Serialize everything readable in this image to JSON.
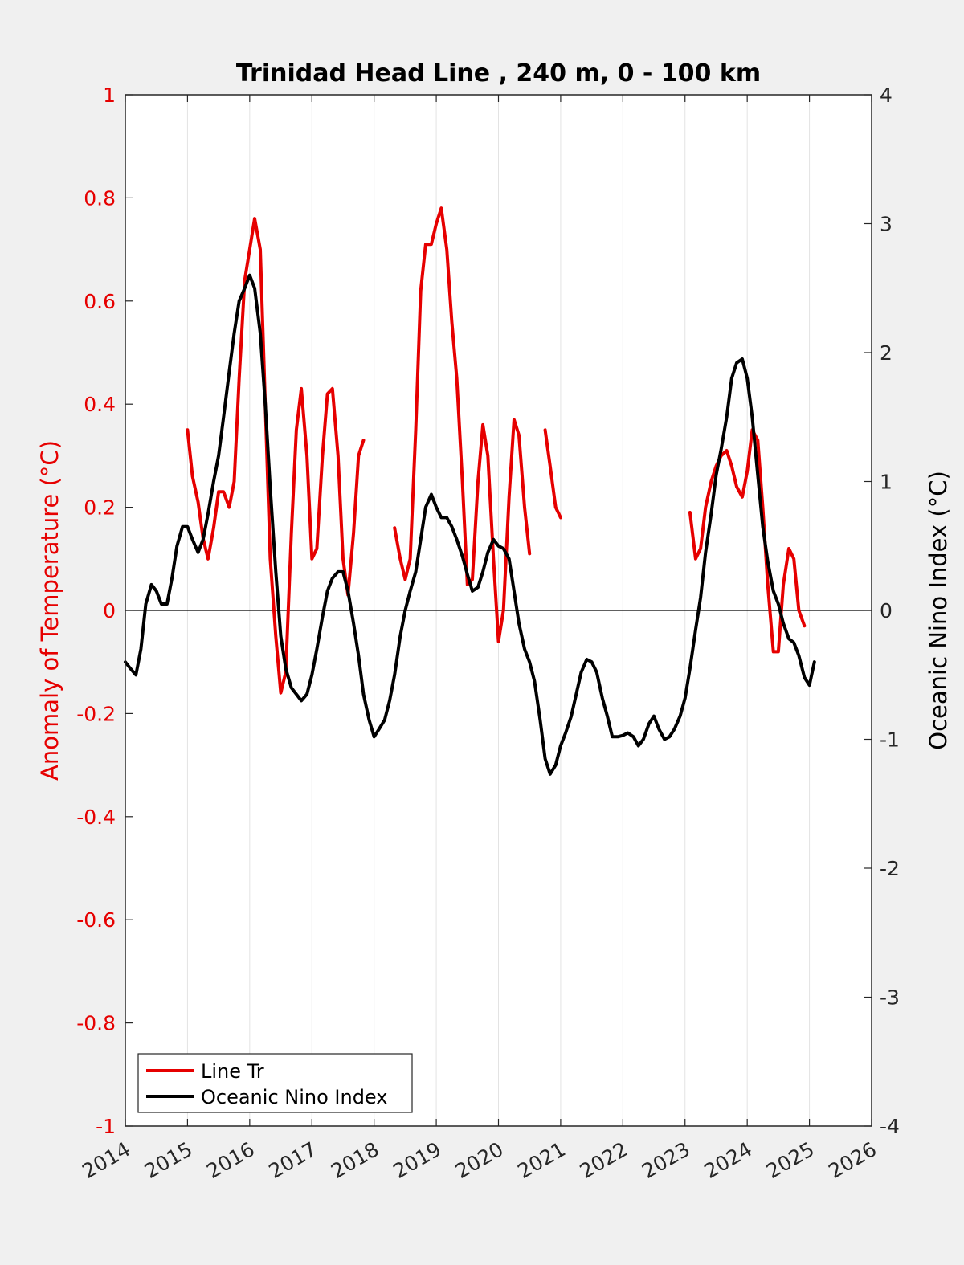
{
  "chart_data": {
    "type": "line",
    "title": "Trinidad Head Line , 240 m, 0 - 100 km",
    "xlabel": "",
    "ylabel_left": "Anomaly of Temperature (°C)",
    "ylabel_right": "Oceanic Nino Index (°C)",
    "xlim": [
      2014,
      2026
    ],
    "ylim_left": [
      -1,
      1
    ],
    "ylim_right": [
      -4,
      4
    ],
    "x_ticks": [
      "2014",
      "2015",
      "2016",
      "2017",
      "2018",
      "2019",
      "2020",
      "2021",
      "2022",
      "2023",
      "2024",
      "2025",
      "2026"
    ],
    "y_ticks_left": [
      "1",
      "0.8",
      "0.6",
      "0.4",
      "0.2",
      "0",
      "-0.2",
      "-0.4",
      "-0.6",
      "-0.8",
      "-1"
    ],
    "y_ticks_right": [
      "4",
      "3",
      "2",
      "1",
      "0",
      "-1",
      "-2",
      "-3",
      "-4"
    ],
    "grid": "vertical",
    "zero_line": true,
    "legend": "bottom-left",
    "colors": {
      "line_tr": "#e60000",
      "oni": "#000000"
    },
    "series": [
      {
        "name": "Line Tr",
        "axis": "left",
        "segments": [
          [
            [
              2015.0,
              0.35
            ],
            [
              2015.08,
              0.26
            ],
            [
              2015.17,
              0.21
            ],
            [
              2015.25,
              0.14
            ],
            [
              2015.33,
              0.1
            ],
            [
              2015.42,
              0.16
            ],
            [
              2015.5,
              0.23
            ],
            [
              2015.58,
              0.23
            ],
            [
              2015.67,
              0.2
            ],
            [
              2015.75,
              0.25
            ],
            [
              2015.83,
              0.45
            ],
            [
              2015.92,
              0.64
            ],
            [
              2016.0,
              0.7
            ],
            [
              2016.08,
              0.76
            ],
            [
              2016.17,
              0.7
            ],
            [
              2016.25,
              0.4
            ],
            [
              2016.33,
              0.1
            ],
            [
              2016.42,
              -0.05
            ],
            [
              2016.5,
              -0.16
            ],
            [
              2016.58,
              -0.12
            ],
            [
              2016.67,
              0.15
            ],
            [
              2016.75,
              0.35
            ],
            [
              2016.83,
              0.43
            ],
            [
              2016.92,
              0.3
            ],
            [
              2017.0,
              0.1
            ],
            [
              2017.08,
              0.12
            ],
            [
              2017.17,
              0.3
            ],
            [
              2017.25,
              0.42
            ],
            [
              2017.33,
              0.43
            ],
            [
              2017.42,
              0.3
            ],
            [
              2017.5,
              0.1
            ],
            [
              2017.58,
              0.03
            ],
            [
              2017.67,
              0.15
            ],
            [
              2017.75,
              0.3
            ],
            [
              2017.83,
              0.33
            ]
          ],
          [
            [
              2018.33,
              0.16
            ],
            [
              2018.42,
              0.1
            ],
            [
              2018.5,
              0.06
            ],
            [
              2018.58,
              0.1
            ],
            [
              2018.67,
              0.35
            ],
            [
              2018.75,
              0.62
            ],
            [
              2018.83,
              0.71
            ],
            [
              2018.92,
              0.71
            ],
            [
              2019.0,
              0.75
            ],
            [
              2019.08,
              0.78
            ],
            [
              2019.17,
              0.7
            ],
            [
              2019.25,
              0.56
            ],
            [
              2019.33,
              0.45
            ],
            [
              2019.42,
              0.25
            ],
            [
              2019.5,
              0.05
            ],
            [
              2019.58,
              0.06
            ],
            [
              2019.67,
              0.25
            ],
            [
              2019.75,
              0.36
            ],
            [
              2019.83,
              0.3
            ],
            [
              2019.92,
              0.1
            ],
            [
              2020.0,
              -0.06
            ],
            [
              2020.08,
              0.0
            ],
            [
              2020.17,
              0.22
            ],
            [
              2020.25,
              0.37
            ],
            [
              2020.33,
              0.34
            ],
            [
              2020.42,
              0.2
            ],
            [
              2020.5,
              0.11
            ]
          ],
          [
            [
              2020.75,
              0.35
            ],
            [
              2020.83,
              0.28
            ],
            [
              2020.92,
              0.2
            ],
            [
              2021.0,
              0.18
            ]
          ],
          [
            [
              2023.08,
              0.19
            ],
            [
              2023.17,
              0.1
            ],
            [
              2023.25,
              0.12
            ],
            [
              2023.33,
              0.2
            ],
            [
              2023.42,
              0.25
            ],
            [
              2023.5,
              0.28
            ],
            [
              2023.58,
              0.3
            ],
            [
              2023.67,
              0.31
            ],
            [
              2023.75,
              0.28
            ],
            [
              2023.83,
              0.24
            ],
            [
              2023.92,
              0.22
            ],
            [
              2024.0,
              0.27
            ],
            [
              2024.08,
              0.35
            ],
            [
              2024.17,
              0.33
            ],
            [
              2024.25,
              0.2
            ],
            [
              2024.33,
              0.05
            ],
            [
              2024.42,
              -0.08
            ],
            [
              2024.5,
              -0.08
            ],
            [
              2024.58,
              0.05
            ],
            [
              2024.67,
              0.12
            ],
            [
              2024.75,
              0.1
            ],
            [
              2024.83,
              0.0
            ],
            [
              2024.92,
              -0.03
            ]
          ]
        ]
      },
      {
        "name": "Oceanic Nino Index",
        "axis": "right",
        "segments": [
          [
            [
              2014.0,
              -0.4
            ],
            [
              2014.08,
              -0.45
            ],
            [
              2014.17,
              -0.5
            ],
            [
              2014.25,
              -0.3
            ],
            [
              2014.33,
              0.05
            ],
            [
              2014.42,
              0.2
            ],
            [
              2014.5,
              0.15
            ],
            [
              2014.58,
              0.05
            ],
            [
              2014.67,
              0.05
            ],
            [
              2014.75,
              0.25
            ],
            [
              2014.83,
              0.5
            ],
            [
              2014.92,
              0.65
            ],
            [
              2015.0,
              0.65
            ],
            [
              2015.08,
              0.55
            ],
            [
              2015.17,
              0.45
            ],
            [
              2015.25,
              0.55
            ],
            [
              2015.33,
              0.75
            ],
            [
              2015.42,
              1.0
            ],
            [
              2015.5,
              1.2
            ],
            [
              2015.58,
              1.5
            ],
            [
              2015.67,
              1.85
            ],
            [
              2015.75,
              2.15
            ],
            [
              2015.83,
              2.4
            ],
            [
              2015.92,
              2.5
            ],
            [
              2016.0,
              2.6
            ],
            [
              2016.08,
              2.5
            ],
            [
              2016.17,
              2.15
            ],
            [
              2016.25,
              1.6
            ],
            [
              2016.33,
              0.95
            ],
            [
              2016.42,
              0.3
            ],
            [
              2016.5,
              -0.2
            ],
            [
              2016.58,
              -0.45
            ],
            [
              2016.67,
              -0.6
            ],
            [
              2016.75,
              -0.65
            ],
            [
              2016.83,
              -0.7
            ],
            [
              2016.92,
              -0.65
            ],
            [
              2017.0,
              -0.5
            ],
            [
              2017.08,
              -0.3
            ],
            [
              2017.17,
              -0.05
            ],
            [
              2017.25,
              0.15
            ],
            [
              2017.33,
              0.25
            ],
            [
              2017.42,
              0.3
            ],
            [
              2017.5,
              0.3
            ],
            [
              2017.58,
              0.15
            ],
            [
              2017.67,
              -0.1
            ],
            [
              2017.75,
              -0.35
            ],
            [
              2017.83,
              -0.65
            ],
            [
              2017.92,
              -0.85
            ],
            [
              2018.0,
              -0.98
            ],
            [
              2018.08,
              -0.92
            ],
            [
              2018.17,
              -0.85
            ],
            [
              2018.25,
              -0.7
            ],
            [
              2018.33,
              -0.5
            ],
            [
              2018.42,
              -0.2
            ],
            [
              2018.5,
              0.0
            ],
            [
              2018.58,
              0.15
            ],
            [
              2018.67,
              0.3
            ],
            [
              2018.75,
              0.55
            ],
            [
              2018.83,
              0.8
            ],
            [
              2018.92,
              0.9
            ],
            [
              2019.0,
              0.8
            ],
            [
              2019.08,
              0.72
            ],
            [
              2019.17,
              0.72
            ],
            [
              2019.25,
              0.65
            ],
            [
              2019.33,
              0.55
            ],
            [
              2019.42,
              0.42
            ],
            [
              2019.5,
              0.28
            ],
            [
              2019.58,
              0.15
            ],
            [
              2019.67,
              0.18
            ],
            [
              2019.75,
              0.3
            ],
            [
              2019.83,
              0.45
            ],
            [
              2019.92,
              0.55
            ],
            [
              2020.0,
              0.5
            ],
            [
              2020.08,
              0.48
            ],
            [
              2020.17,
              0.4
            ],
            [
              2020.25,
              0.15
            ],
            [
              2020.33,
              -0.1
            ],
            [
              2020.42,
              -0.3
            ],
            [
              2020.5,
              -0.4
            ],
            [
              2020.58,
              -0.55
            ],
            [
              2020.67,
              -0.85
            ],
            [
              2020.75,
              -1.15
            ],
            [
              2020.83,
              -1.27
            ],
            [
              2020.92,
              -1.2
            ],
            [
              2021.0,
              -1.05
            ],
            [
              2021.08,
              -0.95
            ],
            [
              2021.17,
              -0.82
            ],
            [
              2021.25,
              -0.65
            ],
            [
              2021.33,
              -0.48
            ],
            [
              2021.42,
              -0.38
            ],
            [
              2021.5,
              -0.4
            ],
            [
              2021.58,
              -0.48
            ],
            [
              2021.67,
              -0.68
            ],
            [
              2021.75,
              -0.82
            ],
            [
              2021.83,
              -0.98
            ],
            [
              2021.92,
              -0.98
            ],
            [
              2022.0,
              -0.97
            ],
            [
              2022.08,
              -0.95
            ],
            [
              2022.17,
              -0.98
            ],
            [
              2022.25,
              -1.05
            ],
            [
              2022.33,
              -1.0
            ],
            [
              2022.42,
              -0.88
            ],
            [
              2022.5,
              -0.82
            ],
            [
              2022.58,
              -0.92
            ],
            [
              2022.67,
              -1.0
            ],
            [
              2022.75,
              -0.98
            ],
            [
              2022.83,
              -0.92
            ],
            [
              2022.92,
              -0.82
            ],
            [
              2023.0,
              -0.68
            ],
            [
              2023.08,
              -0.45
            ],
            [
              2023.17,
              -0.15
            ],
            [
              2023.25,
              0.1
            ],
            [
              2023.33,
              0.45
            ],
            [
              2023.42,
              0.75
            ],
            [
              2023.5,
              1.05
            ],
            [
              2023.58,
              1.25
            ],
            [
              2023.67,
              1.5
            ],
            [
              2023.75,
              1.8
            ],
            [
              2023.83,
              1.92
            ],
            [
              2023.92,
              1.95
            ],
            [
              2024.0,
              1.8
            ],
            [
              2024.08,
              1.5
            ],
            [
              2024.17,
              1.05
            ],
            [
              2024.25,
              0.65
            ],
            [
              2024.33,
              0.38
            ],
            [
              2024.42,
              0.15
            ],
            [
              2024.5,
              0.05
            ],
            [
              2024.58,
              -0.1
            ],
            [
              2024.67,
              -0.22
            ],
            [
              2024.75,
              -0.25
            ],
            [
              2024.83,
              -0.35
            ],
            [
              2024.92,
              -0.52
            ],
            [
              2025.0,
              -0.58
            ],
            [
              2025.08,
              -0.4
            ]
          ]
        ]
      }
    ]
  }
}
